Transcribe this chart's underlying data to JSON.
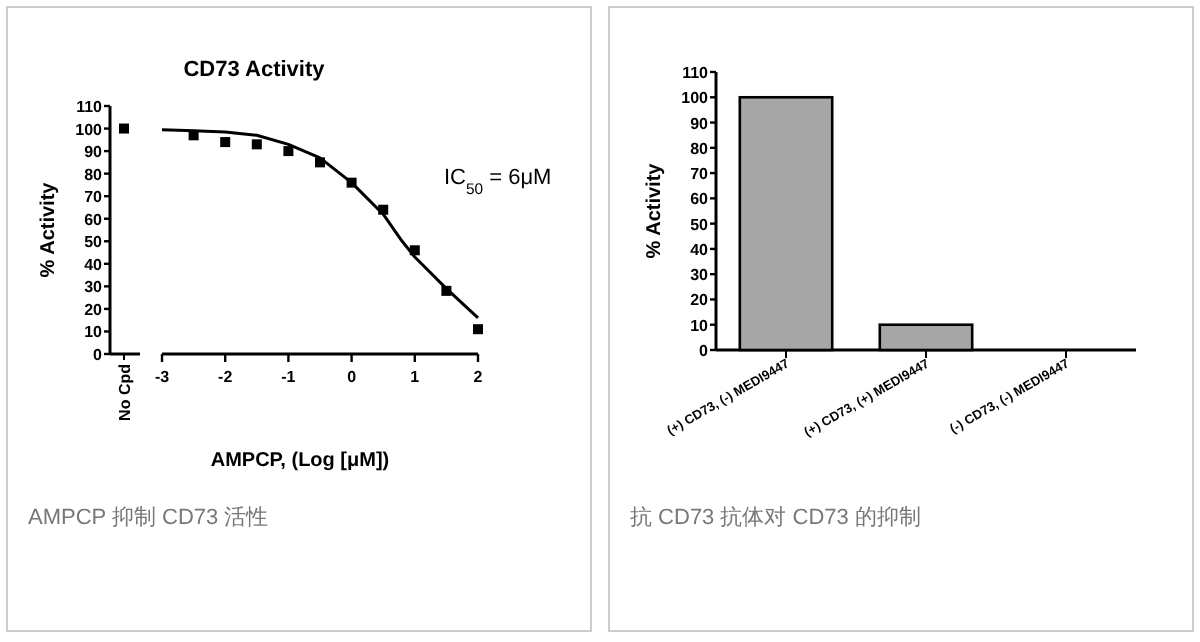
{
  "chart_data": [
    {
      "type": "scatter",
      "categories": [
        "No Cpd"
      ],
      "values": [
        100
      ],
      "color": "#000000",
      "marker": "square",
      "ylim": [
        0,
        110
      ],
      "yticks": [
        0,
        10,
        20,
        30,
        40,
        50,
        60,
        70,
        80,
        90,
        100,
        110
      ],
      "ylabel": "% Activity"
    },
    {
      "type": "scatter",
      "title": "CD73 Activity",
      "xlabel": "AMPCP, (Log [μM])",
      "xlim": [
        -3,
        2
      ],
      "xticks": [
        -3,
        -2,
        -1,
        0,
        1,
        2
      ],
      "ylim": [
        0,
        110
      ],
      "tick_labels": "x",
      "annotations": [
        "IC$_{50}$ = 6μM",
        "AMPCP 抑制 CD73 活性"
      ],
      "series": [
        {
          "type": "scatter",
          "marker": "square",
          "color": "#000000",
          "x": [
            -2.5,
            -2,
            -1.5,
            -1,
            -0.5,
            0,
            0.5,
            1,
            1.5,
            2
          ],
          "values": [
            97,
            94,
            93,
            90,
            85,
            76,
            64,
            46,
            28,
            11
          ]
        },
        {
          "type": "line",
          "marker": "none",
          "color": "#000000",
          "x": [
            -3,
            -2.5,
            -2,
            -1.5,
            -1,
            -0.5,
            0,
            0.5,
            0.8,
            1,
            1.5,
            2
          ],
          "values": [
            99.5,
            99,
            98.5,
            97,
            93,
            87,
            76,
            62,
            50,
            43,
            29,
            16
          ]
        }
      ]
    },
    {
      "type": "bar",
      "categories": [
        "(+) CD73, (-) MEDI9447",
        "(+) CD73, (+) MEDI9447",
        "(-) CD73, (-) MEDI9447"
      ],
      "values": [
        100,
        10,
        0
      ],
      "color": "#a6a6a6",
      "ylim": [
        0,
        110
      ],
      "yticks": [
        0,
        10,
        20,
        30,
        40,
        50,
        60,
        70,
        80,
        90,
        100,
        110
      ],
      "ylabel": "% Activity",
      "annotations": [
        "抗 CD73 抗体对 CD73 的抑制"
      ]
    }
  ]
}
